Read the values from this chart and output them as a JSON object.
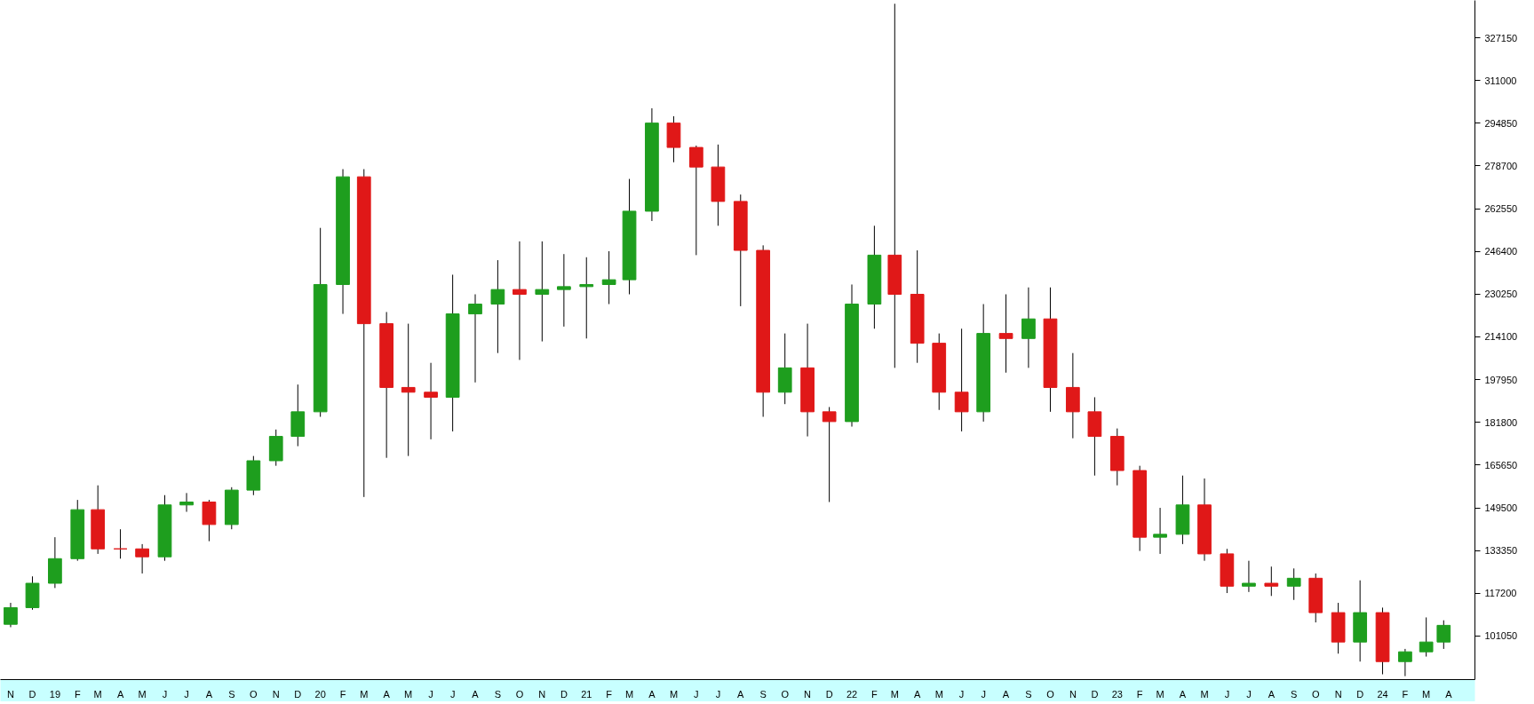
{
  "chart_data": {
    "type": "candlestick",
    "x": [
      "2018-11-15",
      "2018-12-15",
      "2019-01-15",
      "2019-02-15",
      "2019-03-15",
      "2019-04-15",
      "2019-05-15",
      "2019-06-15",
      "2019-07-15",
      "2019-08-15",
      "2019-09-15",
      "2019-10-15",
      "2019-11-15",
      "2019-12-15",
      "2020-01-15",
      "2020-02-15",
      "2020-03-15",
      "2020-04-15",
      "2020-05-15",
      "2020-06-15",
      "2020-07-15",
      "2020-08-15",
      "2020-09-15",
      "2020-10-15",
      "2020-11-15",
      "2020-12-15",
      "2021-01-15",
      "2021-02-15",
      "2021-03-15",
      "2021-04-15",
      "2021-05-15",
      "2021-06-15",
      "2021-07-15",
      "2021-08-15",
      "2021-09-15",
      "2021-10-15",
      "2021-11-15",
      "2021-12-15",
      "2022-01-15",
      "2022-02-15",
      "2022-03-15",
      "2022-04-15",
      "2022-05-15",
      "2022-06-15",
      "2022-07-15",
      "2022-08-15",
      "2022-09-15",
      "2022-10-15",
      "2022-11-15",
      "2022-12-15",
      "2023-01-15",
      "2023-02-15",
      "2023-03-15",
      "2023-04-15",
      "2023-05-15",
      "2023-06-15",
      "2023-07-15",
      "2023-08-15",
      "2023-09-15",
      "2023-10-15",
      "2023-11-15",
      "2023-12-15",
      "2024-01-15",
      "2024-02-15",
      "2024-03-15",
      "2024-04-08"
    ],
    "ohlc": [
      [
        105500,
        113600,
        104400,
        111800
      ],
      [
        111800,
        123600,
        111000,
        121000
      ],
      [
        121000,
        138400,
        119200,
        130300
      ],
      [
        130300,
        152500,
        129500,
        148800
      ],
      [
        148800,
        158000,
        132100,
        134000
      ],
      [
        134000,
        141400,
        130300,
        134000
      ],
      [
        134000,
        135800,
        124700,
        131000
      ],
      [
        131000,
        154300,
        129500,
        150600
      ],
      [
        150600,
        155100,
        148000,
        151700
      ],
      [
        151700,
        152500,
        136900,
        143200
      ],
      [
        143200,
        157300,
        141400,
        156200
      ],
      [
        156200,
        169100,
        154300,
        167300
      ],
      [
        167300,
        179100,
        165400,
        176500
      ],
      [
        176500,
        196100,
        172800,
        185800
      ],
      [
        185800,
        255300,
        183900,
        233900
      ],
      [
        233900,
        277500,
        222800,
        274600
      ],
      [
        274600,
        277500,
        153600,
        219100
      ],
      [
        219100,
        223500,
        168400,
        195000
      ],
      [
        195000,
        219100,
        169100,
        193200
      ],
      [
        193200,
        204300,
        175400,
        191300
      ],
      [
        191300,
        237600,
        178400,
        222800
      ],
      [
        222800,
        230200,
        196900,
        226500
      ],
      [
        226500,
        243100,
        208000,
        232000
      ],
      [
        232000,
        250200,
        205400,
        230200
      ],
      [
        230200,
        250200,
        212400,
        232000
      ],
      [
        232000,
        245400,
        218000,
        233100
      ],
      [
        233100,
        244200,
        213500,
        233900
      ],
      [
        233900,
        246500,
        226500,
        235700
      ],
      [
        235700,
        273800,
        230200,
        261600
      ],
      [
        261600,
        300500,
        257900,
        294900
      ],
      [
        294900,
        297500,
        280100,
        285700
      ],
      [
        285700,
        286400,
        245000,
        278300
      ],
      [
        278300,
        286800,
        256100,
        265300
      ],
      [
        265300,
        267900,
        225700,
        246800
      ],
      [
        246800,
        248700,
        183900,
        193200
      ],
      [
        193200,
        215400,
        188700,
        202400
      ],
      [
        202400,
        219100,
        176500,
        185800
      ],
      [
        185800,
        187600,
        151700,
        182100
      ],
      [
        182100,
        233900,
        180200,
        226500
      ],
      [
        226500,
        256100,
        217200,
        245000
      ],
      [
        245000,
        340000,
        202400,
        230200
      ],
      [
        230200,
        246800,
        204300,
        211700
      ],
      [
        211700,
        215400,
        186500,
        193200
      ],
      [
        193200,
        217200,
        178400,
        185800
      ],
      [
        185800,
        226500,
        182100,
        215400
      ],
      [
        215400,
        230200,
        200600,
        213500
      ],
      [
        213500,
        232800,
        202400,
        220900
      ],
      [
        220900,
        232800,
        185800,
        195000
      ],
      [
        195000,
        208000,
        175800,
        185800
      ],
      [
        185800,
        191300,
        161700,
        176500
      ],
      [
        176500,
        179500,
        158000,
        163600
      ],
      [
        163600,
        165400,
        133200,
        138400
      ],
      [
        138400,
        149500,
        132100,
        139500
      ],
      [
        139500,
        161700,
        135800,
        150600
      ],
      [
        150600,
        160600,
        129500,
        132100
      ],
      [
        132100,
        134000,
        117300,
        119900
      ],
      [
        119900,
        129500,
        117700,
        121000
      ],
      [
        121000,
        127300,
        116200,
        119900
      ],
      [
        119900,
        126600,
        114700,
        122900
      ],
      [
        122900,
        124700,
        106200,
        109900
      ],
      [
        109900,
        113600,
        94400,
        98800
      ],
      [
        98800,
        122100,
        91400,
        109900
      ],
      [
        109900,
        111800,
        86600,
        91400
      ],
      [
        91400,
        96200,
        85900,
        95100
      ],
      [
        95100,
        108100,
        93300,
        98800
      ],
      [
        98800,
        107000,
        96200,
        105100
      ]
    ],
    "colors": [
      "#1e9e1e",
      "#1e9e1e",
      "#1e9e1e",
      "#1e9e1e",
      "#e01818",
      "#e01818",
      "#e01818",
      "#1e9e1e",
      "#1e9e1e",
      "#e01818",
      "#1e9e1e",
      "#1e9e1e",
      "#1e9e1e",
      "#1e9e1e",
      "#1e9e1e",
      "#1e9e1e",
      "#e01818",
      "#e01818",
      "#e01818",
      "#e01818",
      "#1e9e1e",
      "#1e9e1e",
      "#1e9e1e",
      "#e01818",
      "#1e9e1e",
      "#1e9e1e",
      "#1e9e1e",
      "#1e9e1e",
      "#1e9e1e",
      "#1e9e1e",
      "#e01818",
      "#e01818",
      "#e01818",
      "#e01818",
      "#e01818",
      "#1e9e1e",
      "#e01818",
      "#e01818",
      "#1e9e1e",
      "#1e9e1e",
      "#e01818",
      "#e01818",
      "#e01818",
      "#e01818",
      "#1e9e1e",
      "#e01818",
      "#1e9e1e",
      "#e01818",
      "#e01818",
      "#e01818",
      "#e01818",
      "#e01818",
      "#1e9e1e",
      "#1e9e1e",
      "#e01818",
      "#e01818",
      "#1e9e1e",
      "#e01818",
      "#1e9e1e",
      "#e01818",
      "#e01818",
      "#1e9e1e",
      "#e01818",
      "#1e9e1e",
      "#1e9e1e",
      "#1e9e1e"
    ],
    "xlim": [
      "2018-11-01",
      "2024-05-21"
    ],
    "xticks": [
      {
        "value": "2018-11-15",
        "label": "N"
      },
      {
        "value": "2018-12-15",
        "label": "D"
      },
      {
        "value": "2019-01-15",
        "label": "19"
      },
      {
        "value": "2019-02-15",
        "label": "F"
      },
      {
        "value": "2019-03-15",
        "label": "M"
      },
      {
        "value": "2019-04-15",
        "label": "A"
      },
      {
        "value": "2019-05-15",
        "label": "M"
      },
      {
        "value": "2019-06-15",
        "label": "J"
      },
      {
        "value": "2019-07-15",
        "label": "J"
      },
      {
        "value": "2019-08-15",
        "label": "A"
      },
      {
        "value": "2019-09-15",
        "label": "S"
      },
      {
        "value": "2019-10-15",
        "label": "O"
      },
      {
        "value": "2019-11-15",
        "label": "N"
      },
      {
        "value": "2019-12-15",
        "label": "D"
      },
      {
        "value": "2020-01-15",
        "label": "20"
      },
      {
        "value": "2020-02-15",
        "label": "F"
      },
      {
        "value": "2020-03-15",
        "label": "M"
      },
      {
        "value": "2020-04-15",
        "label": "A"
      },
      {
        "value": "2020-05-15",
        "label": "M"
      },
      {
        "value": "2020-06-15",
        "label": "J"
      },
      {
        "value": "2020-07-15",
        "label": "J"
      },
      {
        "value": "2020-08-15",
        "label": "A"
      },
      {
        "value": "2020-09-15",
        "label": "S"
      },
      {
        "value": "2020-10-15",
        "label": "O"
      },
      {
        "value": "2020-11-15",
        "label": "N"
      },
      {
        "value": "2020-12-15",
        "label": "D"
      },
      {
        "value": "2021-01-15",
        "label": "21"
      },
      {
        "value": "2021-02-15",
        "label": "F"
      },
      {
        "value": "2021-03-15",
        "label": "M"
      },
      {
        "value": "2021-04-15",
        "label": "A"
      },
      {
        "value": "2021-05-15",
        "label": "M"
      },
      {
        "value": "2021-06-15",
        "label": "J"
      },
      {
        "value": "2021-07-15",
        "label": "J"
      },
      {
        "value": "2021-08-15",
        "label": "A"
      },
      {
        "value": "2021-09-15",
        "label": "S"
      },
      {
        "value": "2021-10-15",
        "label": "O"
      },
      {
        "value": "2021-11-15",
        "label": "N"
      },
      {
        "value": "2021-12-15",
        "label": "D"
      },
      {
        "value": "2022-01-15",
        "label": "22"
      },
      {
        "value": "2022-02-15",
        "label": "F"
      },
      {
        "value": "2022-03-15",
        "label": "M"
      },
      {
        "value": "2022-04-15",
        "label": "A"
      },
      {
        "value": "2022-05-15",
        "label": "M"
      },
      {
        "value": "2022-06-15",
        "label": "J"
      },
      {
        "value": "2022-07-15",
        "label": "J"
      },
      {
        "value": "2022-08-15",
        "label": "A"
      },
      {
        "value": "2022-09-15",
        "label": "S"
      },
      {
        "value": "2022-10-15",
        "label": "O"
      },
      {
        "value": "2022-11-15",
        "label": "N"
      },
      {
        "value": "2022-12-15",
        "label": "D"
      },
      {
        "value": "2023-01-15",
        "label": "23"
      },
      {
        "value": "2023-02-15",
        "label": "F"
      },
      {
        "value": "2023-03-15",
        "label": "M"
      },
      {
        "value": "2023-04-15",
        "label": "A"
      },
      {
        "value": "2023-05-15",
        "label": "M"
      },
      {
        "value": "2023-06-15",
        "label": "J"
      },
      {
        "value": "2023-07-15",
        "label": "J"
      },
      {
        "value": "2023-08-15",
        "label": "A"
      },
      {
        "value": "2023-09-15",
        "label": "S"
      },
      {
        "value": "2023-10-15",
        "label": "O"
      },
      {
        "value": "2023-11-15",
        "label": "N"
      },
      {
        "value": "2023-12-15",
        "label": "D"
      },
      {
        "value": "2024-01-15",
        "label": "24"
      },
      {
        "value": "2024-02-15",
        "label": "F"
      },
      {
        "value": "2024-03-15",
        "label": "M"
      },
      {
        "value": "2024-04-15",
        "label": "A"
      }
    ],
    "ylim": [
      84600,
      341250
    ],
    "yticks": [
      101050,
      117200,
      133350,
      149500,
      165650,
      181800,
      197950,
      214100,
      230250,
      246400,
      262550,
      278700,
      294850,
      311000,
      327150
    ]
  }
}
